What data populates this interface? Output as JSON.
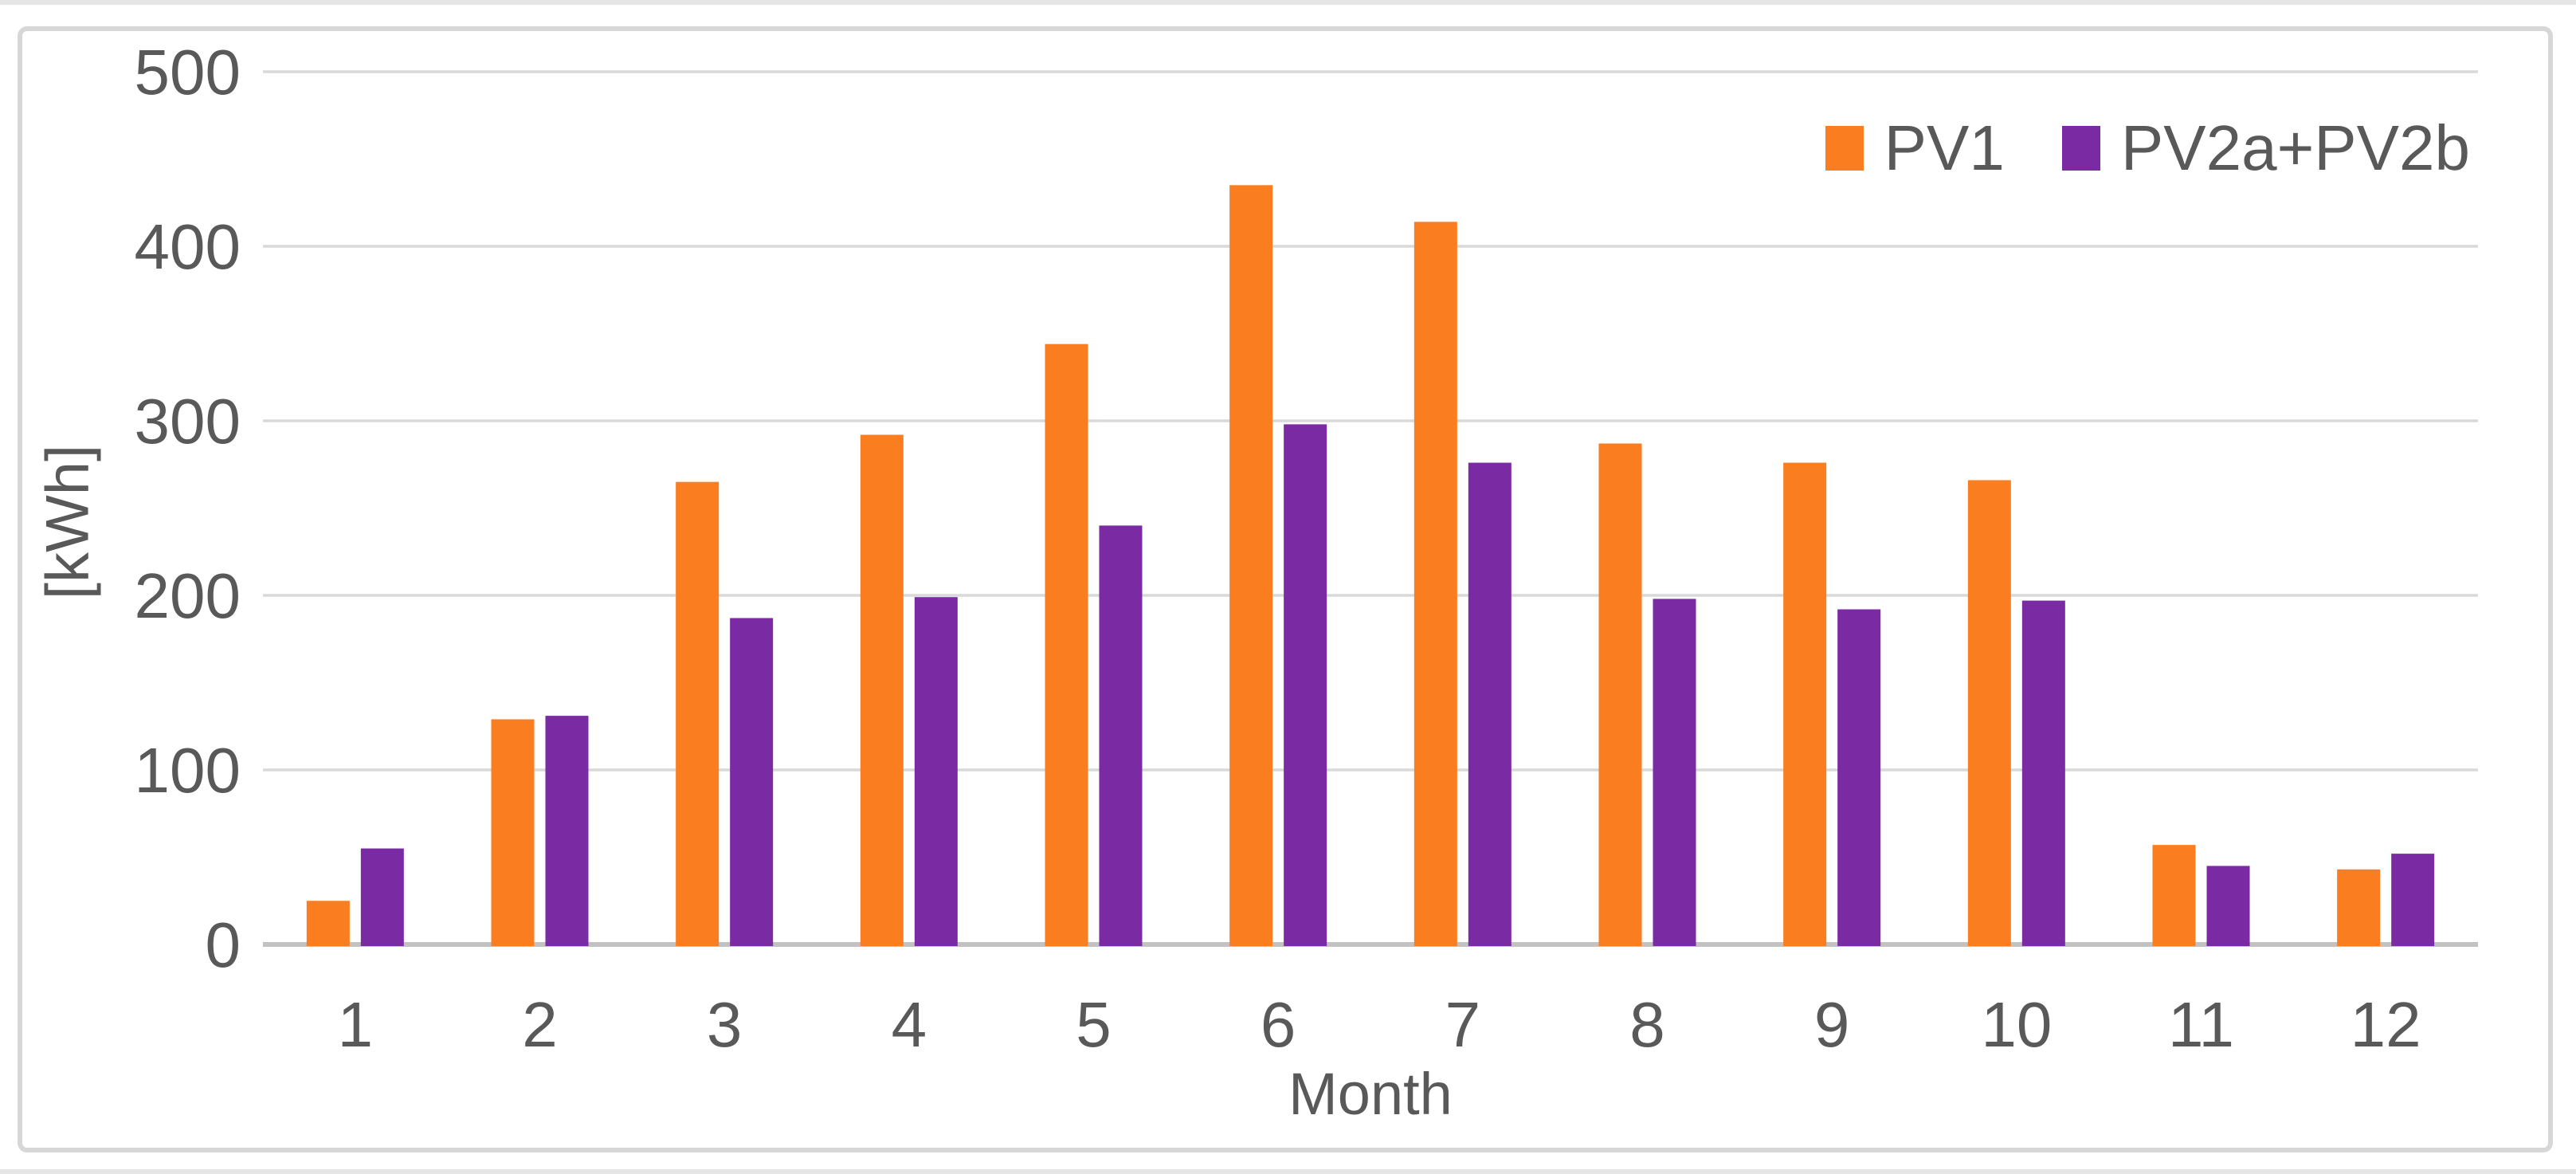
{
  "chart_data": {
    "type": "bar",
    "title": "",
    "categories": [
      "1",
      "2",
      "3",
      "4",
      "5",
      "6",
      "7",
      "8",
      "9",
      "10",
      "11",
      "12"
    ],
    "series": [
      {
        "name": "PV1",
        "color": "#FA7D20",
        "values": [
          25,
          129,
          265,
          292,
          344,
          435,
          414,
          287,
          276,
          266,
          57,
          43
        ]
      },
      {
        "name": "PV2a+PV2b",
        "color": "#7A2BA3",
        "values": [
          55,
          131,
          187,
          199,
          240,
          298,
          276,
          198,
          192,
          197,
          45,
          52
        ]
      }
    ],
    "xlabel": "Month",
    "ylabel": "[kWh]",
    "ylim": [
      0,
      500
    ],
    "yticks": [
      0,
      100,
      200,
      300,
      400,
      500
    ],
    "grid": "horizontal",
    "legend_position": "top-right"
  },
  "colors": {
    "text": "#595959",
    "gridline": "#D9D9D9",
    "axis_line": "#C2C2C2",
    "frame_border": "#D7D7D7",
    "background": "#FFFFFF"
  }
}
